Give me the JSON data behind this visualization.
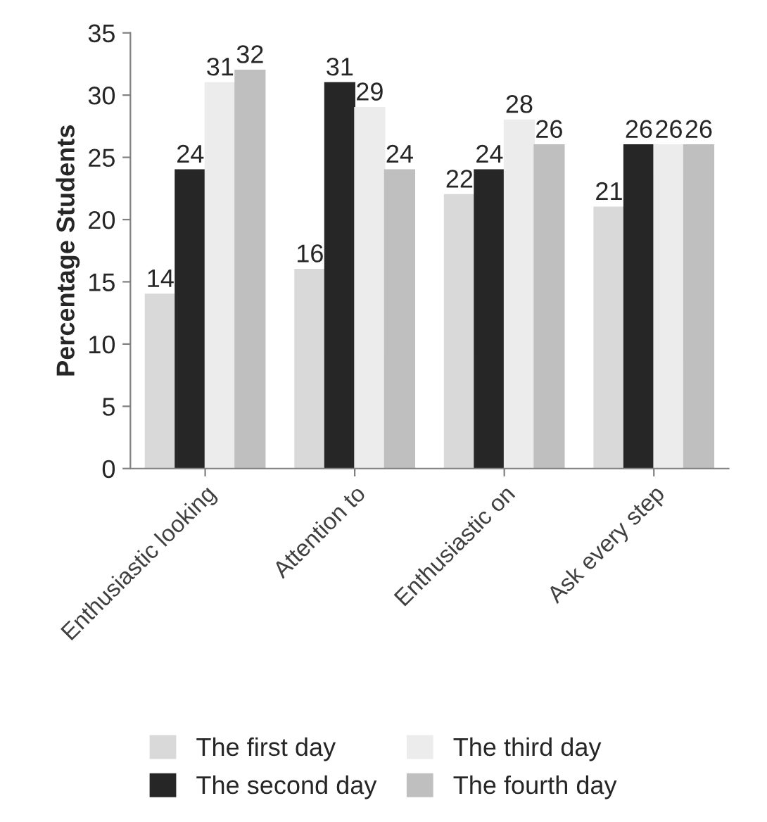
{
  "chart_data": {
    "type": "bar",
    "ylabel": "Percentage Students",
    "categories": [
      "Enthusiastic looking",
      "Attention to",
      "Enthusiastic on",
      "Ask every step"
    ],
    "series": [
      {
        "name": "The first day",
        "color": "#d9d9d9",
        "values": [
          14,
          16,
          22,
          21
        ]
      },
      {
        "name": "The second day",
        "color": "#262626",
        "values": [
          24,
          31,
          24,
          26
        ]
      },
      {
        "name": "The third day",
        "color": "#ececec",
        "values": [
          31,
          29,
          28,
          26
        ]
      },
      {
        "name": "The fourth day",
        "color": "#bfbfbf",
        "values": [
          32,
          24,
          26,
          26
        ]
      }
    ],
    "ylim": [
      0,
      35
    ],
    "yticks": [
      0,
      5,
      10,
      15,
      20,
      25,
      30,
      35
    ],
    "data_labels": true,
    "grid": false,
    "legend": "bottom"
  }
}
